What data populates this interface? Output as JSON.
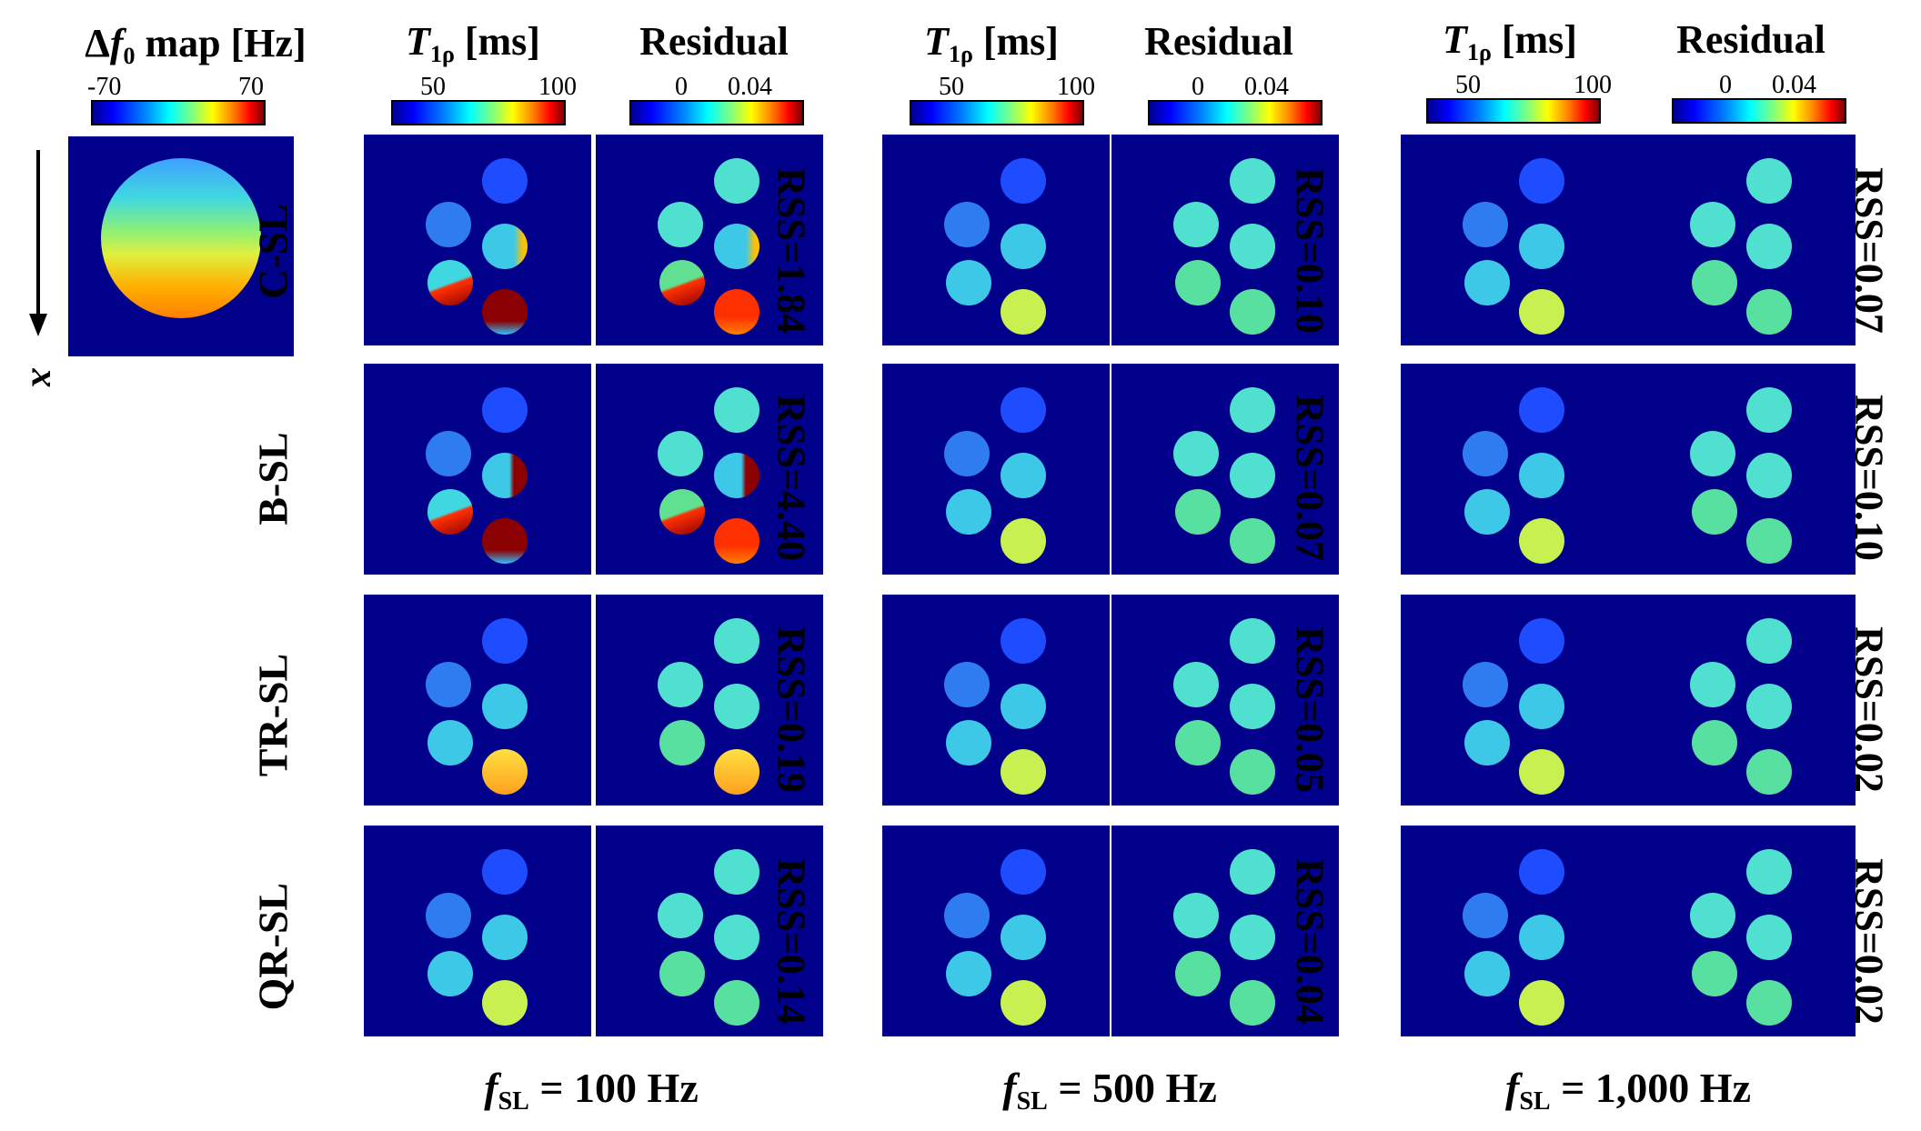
{
  "df0": {
    "title_delta": "Δ",
    "title_f": "f",
    "title_sub": "0",
    "title_rest": " map [Hz]",
    "tick_min": "-70",
    "tick_max": "70",
    "axis_label": "x"
  },
  "headers": {
    "t1rho_T": "T",
    "t1rho_sub": "1ρ",
    "t1rho_unit": " [ms]",
    "t1rho_tick_min": "50",
    "t1rho_tick_max": "100",
    "residual": "Residual",
    "res_tick_min": "0",
    "res_tick_max": "0.04"
  },
  "rows": [
    "C-SL",
    "B-SL",
    "TR-SL",
    "QR-SL"
  ],
  "rss": {
    "f100": [
      "RSS=1.84",
      "RSS=4.40",
      "RSS=0.19",
      "RSS=0.14"
    ],
    "f500": [
      "RSS=0.10",
      "RSS=0.07",
      "RSS=0.05",
      "RSS=0.04"
    ],
    "f1000": [
      "RSS=0.07",
      "RSS=0.10",
      "RSS=0.02",
      "RSS=0.02"
    ]
  },
  "footers": {
    "f": "f",
    "sub": "SL",
    "f100": " = 100 Hz",
    "f500": " = 500 Hz",
    "f1000": " = 1,000 Hz"
  },
  "colors": {
    "background": "#00008b",
    "low": "#1e4cff",
    "mid": "#3cc8e6",
    "mid2": "#50e0d0",
    "high": "#c8f050",
    "hot": "#ff3000",
    "dark_red": "#8b0000"
  }
}
